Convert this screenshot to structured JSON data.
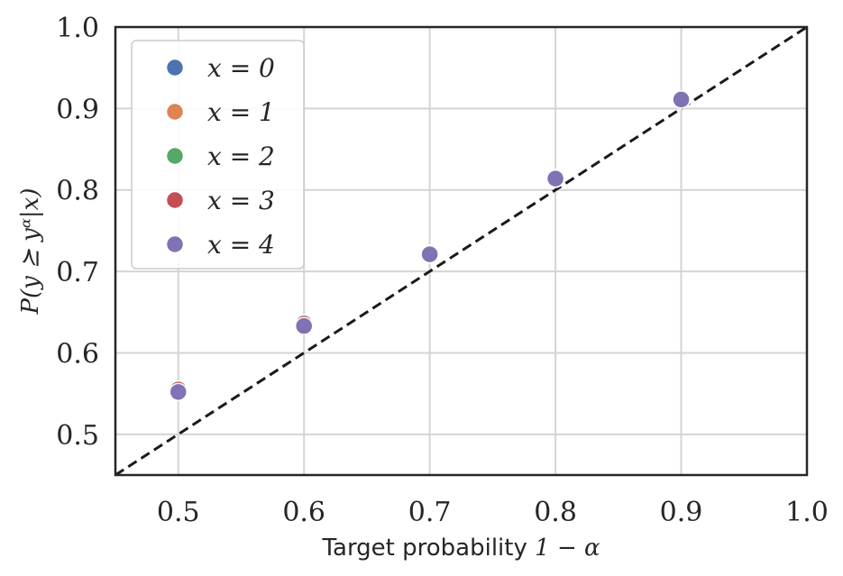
{
  "chart_data": {
    "type": "scatter",
    "title": "",
    "xlabel": "Target probability 1 − α",
    "xlabel_text": "Target probability ",
    "xlabel_math": "1 − α",
    "ylabel": "P(y ⪰ yᵅ|x)",
    "xlim": [
      0.45,
      1.0
    ],
    "ylim": [
      0.45,
      1.0
    ],
    "xticks": [
      "0.5",
      "0.6",
      "0.7",
      "0.8",
      "0.9",
      "1.0"
    ],
    "yticks": [
      "0.5",
      "0.6",
      "0.7",
      "0.8",
      "0.9",
      "1.0"
    ],
    "grid": true,
    "legend_position": "upper-left",
    "reference_line": {
      "style": "dashed",
      "color": "#1a1a1a",
      "from": [
        0.45,
        0.45
      ],
      "to": [
        1.0,
        1.0
      ]
    },
    "series": [
      {
        "name": "x = 0",
        "color": "#4c72b0",
        "x": [
          0.5,
          0.6,
          0.7,
          0.8,
          0.9
        ],
        "y": [
          0.553,
          0.634,
          0.721,
          0.814,
          0.911
        ]
      },
      {
        "name": "x = 1",
        "color": "#dd8452",
        "x": [
          0.5,
          0.6,
          0.7,
          0.8,
          0.9
        ],
        "y": [
          0.554,
          0.635,
          0.721,
          0.814,
          0.911
        ]
      },
      {
        "name": "x = 2",
        "color": "#55a868",
        "x": [
          0.5,
          0.6,
          0.7,
          0.8,
          0.9
        ],
        "y": [
          0.554,
          0.635,
          0.721,
          0.814,
          0.911
        ]
      },
      {
        "name": "x = 3",
        "color": "#c44e52",
        "x": [
          0.5,
          0.6,
          0.7,
          0.8,
          0.9
        ],
        "y": [
          0.555,
          0.636,
          0.722,
          0.815,
          0.911
        ]
      },
      {
        "name": "x = 4",
        "color": "#8172b3",
        "x": [
          0.5,
          0.6,
          0.7,
          0.8,
          0.9
        ],
        "y": [
          0.552,
          0.633,
          0.721,
          0.814,
          0.911
        ]
      }
    ]
  }
}
